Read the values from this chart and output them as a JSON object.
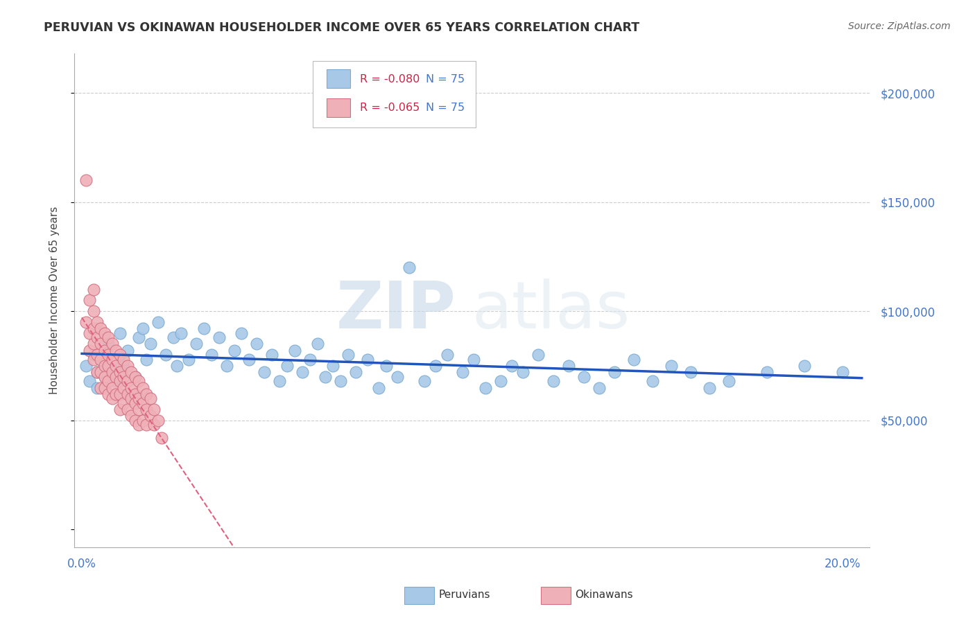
{
  "title": "PERUVIAN VS OKINAWAN HOUSEHOLDER INCOME OVER 65 YEARS CORRELATION CHART",
  "source": "Source: ZipAtlas.com",
  "ylabel": "Householder Income Over 65 years",
  "xlim": [
    -0.002,
    0.207
  ],
  "ylim": [
    -8000,
    218000
  ],
  "yticks": [
    0,
    50000,
    100000,
    150000,
    200000
  ],
  "ytick_labels": [
    "",
    "$50,000",
    "$100,000",
    "$150,000",
    "$200,000"
  ],
  "xticks": [
    0.0,
    0.05,
    0.1,
    0.15,
    0.2
  ],
  "xtick_labels": [
    "0.0%",
    "",
    "",
    "",
    "20.0%"
  ],
  "grid_color": "#cccccc",
  "background_color": "#ffffff",
  "peruvians_color": "#a8c8e8",
  "peruvians_edge_color": "#7aaad0",
  "okinawans_color": "#f0b0b8",
  "okinawans_edge_color": "#d07080",
  "trend_peru_color": "#2255bb",
  "trend_oki_color": "#e06080",
  "legend_r_peru": "R = -0.080",
  "legend_r_oki": "R = -0.065",
  "legend_n_peru": "N = 75",
  "legend_n_oki": "N = 75",
  "watermark_zip": "ZIP",
  "watermark_atlas": "atlas",
  "peruvians_x": [
    0.001,
    0.002,
    0.003,
    0.004,
    0.004,
    0.005,
    0.006,
    0.007,
    0.008,
    0.009,
    0.01,
    0.011,
    0.012,
    0.014,
    0.015,
    0.016,
    0.017,
    0.018,
    0.02,
    0.022,
    0.024,
    0.025,
    0.026,
    0.028,
    0.03,
    0.032,
    0.034,
    0.036,
    0.038,
    0.04,
    0.042,
    0.044,
    0.046,
    0.048,
    0.05,
    0.052,
    0.054,
    0.056,
    0.058,
    0.06,
    0.062,
    0.064,
    0.066,
    0.068,
    0.07,
    0.072,
    0.075,
    0.078,
    0.08,
    0.083,
    0.086,
    0.09,
    0.093,
    0.096,
    0.1,
    0.103,
    0.106,
    0.11,
    0.113,
    0.116,
    0.12,
    0.124,
    0.128,
    0.132,
    0.136,
    0.14,
    0.145,
    0.15,
    0.155,
    0.16,
    0.165,
    0.17,
    0.18,
    0.19,
    0.2
  ],
  "peruvians_y": [
    75000,
    68000,
    80000,
    72000,
    65000,
    78000,
    70000,
    85000,
    73000,
    68000,
    90000,
    75000,
    82000,
    70000,
    88000,
    92000,
    78000,
    85000,
    95000,
    80000,
    88000,
    75000,
    90000,
    78000,
    85000,
    92000,
    80000,
    88000,
    75000,
    82000,
    90000,
    78000,
    85000,
    72000,
    80000,
    68000,
    75000,
    82000,
    72000,
    78000,
    85000,
    70000,
    75000,
    68000,
    80000,
    72000,
    78000,
    65000,
    75000,
    70000,
    120000,
    68000,
    75000,
    80000,
    72000,
    78000,
    65000,
    68000,
    75000,
    72000,
    80000,
    68000,
    75000,
    70000,
    65000,
    72000,
    78000,
    68000,
    75000,
    72000,
    65000,
    68000,
    72000,
    75000,
    72000
  ],
  "okinawans_x": [
    0.001,
    0.001,
    0.002,
    0.002,
    0.002,
    0.003,
    0.003,
    0.003,
    0.003,
    0.003,
    0.004,
    0.004,
    0.004,
    0.004,
    0.005,
    0.005,
    0.005,
    0.005,
    0.005,
    0.006,
    0.006,
    0.006,
    0.006,
    0.006,
    0.007,
    0.007,
    0.007,
    0.007,
    0.007,
    0.008,
    0.008,
    0.008,
    0.008,
    0.008,
    0.009,
    0.009,
    0.009,
    0.009,
    0.01,
    0.01,
    0.01,
    0.01,
    0.01,
    0.011,
    0.011,
    0.011,
    0.011,
    0.012,
    0.012,
    0.012,
    0.012,
    0.013,
    0.013,
    0.013,
    0.013,
    0.014,
    0.014,
    0.014,
    0.014,
    0.015,
    0.015,
    0.015,
    0.015,
    0.016,
    0.016,
    0.016,
    0.017,
    0.017,
    0.017,
    0.018,
    0.018,
    0.019,
    0.019,
    0.02,
    0.021
  ],
  "okinawans_y": [
    160000,
    95000,
    105000,
    90000,
    82000,
    100000,
    92000,
    85000,
    78000,
    110000,
    95000,
    88000,
    80000,
    72000,
    92000,
    85000,
    78000,
    72000,
    65000,
    90000,
    82000,
    75000,
    70000,
    65000,
    88000,
    80000,
    75000,
    68000,
    62000,
    85000,
    78000,
    72000,
    65000,
    60000,
    82000,
    75000,
    70000,
    62000,
    80000,
    72000,
    68000,
    62000,
    55000,
    78000,
    70000,
    65000,
    58000,
    75000,
    68000,
    62000,
    55000,
    72000,
    65000,
    60000,
    52000,
    70000,
    62000,
    58000,
    50000,
    68000,
    60000,
    55000,
    48000,
    65000,
    58000,
    50000,
    62000,
    55000,
    48000,
    60000,
    52000,
    55000,
    48000,
    50000,
    42000
  ]
}
